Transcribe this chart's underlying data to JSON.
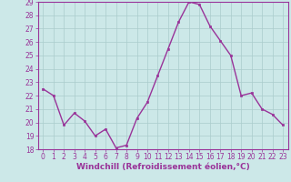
{
  "x": [
    0,
    1,
    2,
    3,
    4,
    5,
    6,
    7,
    8,
    9,
    10,
    11,
    12,
    13,
    14,
    15,
    16,
    17,
    18,
    19,
    20,
    21,
    22,
    23
  ],
  "y": [
    22.5,
    22.0,
    19.8,
    20.7,
    20.1,
    19.0,
    19.5,
    18.1,
    18.3,
    20.3,
    21.5,
    23.5,
    25.5,
    27.5,
    29.0,
    28.8,
    27.2,
    26.1,
    25.0,
    22.0,
    22.2,
    21.0,
    20.6,
    19.8
  ],
  "line_color": "#993399",
  "marker": "s",
  "marker_size": 2,
  "bg_color": "#cce8e8",
  "grid_color": "#aacccc",
  "xlabel": "Windchill (Refroidissement éolien,°C)",
  "ylim": [
    18,
    29
  ],
  "xlim": [
    -0.5,
    23.5
  ],
  "yticks": [
    18,
    19,
    20,
    21,
    22,
    23,
    24,
    25,
    26,
    27,
    28,
    29
  ],
  "xticks": [
    0,
    1,
    2,
    3,
    4,
    5,
    6,
    7,
    8,
    9,
    10,
    11,
    12,
    13,
    14,
    15,
    16,
    17,
    18,
    19,
    20,
    21,
    22,
    23
  ],
  "tick_label_size": 5.5,
  "xlabel_fontsize": 6.5,
  "xlabel_color": "#993399",
  "tick_color": "#993399",
  "spine_color": "#993399",
  "line_width": 1.0
}
